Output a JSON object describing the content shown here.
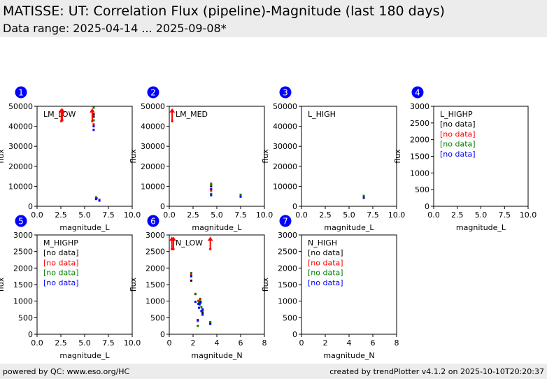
{
  "header": {
    "title": "MATISSE: UT: Correlation Flux (pipeline)-Magnitude (last 180 days)",
    "subtitle": "Data range: 2025-04-14 ... 2025-09-08*"
  },
  "footer": {
    "left": "powered by QC: www.eso.org/HC",
    "right": "created by trendPlotter v4.1.2 on 2025-10-10T20:20:37"
  },
  "colors": {
    "badge": "#0000ff",
    "series": [
      "#000000",
      "#ff0000",
      "#008000",
      "#0000ff"
    ],
    "nodata": [
      "#000000",
      "#ff0000",
      "#008000",
      "#0000ff"
    ]
  },
  "chart_data": [
    {
      "type": "scatter",
      "index": "1",
      "label": "LM_LOW",
      "xlabel": "magnitude_L",
      "ylabel": "flux",
      "xlim": [
        0,
        10
      ],
      "ylim": [
        0,
        50000
      ],
      "xticks": [
        "0.0",
        "2.5",
        "5.0",
        "7.5",
        "10.0"
      ],
      "yticks": [
        "0",
        "10000",
        "20000",
        "30000",
        "40000",
        "50000"
      ],
      "xtick_values": [
        0,
        2.5,
        5,
        7.5,
        10
      ],
      "ytick_values": [
        0,
        10000,
        20000,
        30000,
        40000,
        50000
      ],
      "arrows": [
        {
          "x": 2.55,
          "y_from": 42500,
          "y_to": 49000,
          "color": "#ff0000"
        },
        {
          "x": 2.65,
          "y_from": 43000,
          "y_to": 49000,
          "color": "#ff0000"
        },
        {
          "x": 5.8,
          "y_from": 42500,
          "y_to": 49000,
          "color": "#ff0000"
        }
      ],
      "series": [
        {
          "name": "black",
          "color": "#000000",
          "points": [
            [
              5.95,
              46000
            ],
            [
              5.95,
              44800
            ],
            [
              6.25,
              4000
            ]
          ]
        },
        {
          "name": "red",
          "color": "#ff0000",
          "points": [
            [
              5.95,
              41000
            ],
            [
              6.55,
              3300
            ],
            [
              2.6,
              46500
            ]
          ]
        },
        {
          "name": "green",
          "color": "#008000",
          "points": [
            [
              5.95,
              49300
            ],
            [
              5.95,
              43000
            ],
            [
              6.2,
              4500
            ]
          ]
        },
        {
          "name": "blue",
          "color": "#0000ff",
          "points": [
            [
              5.95,
              40000
            ],
            [
              5.95,
              38200
            ],
            [
              6.2,
              3600
            ],
            [
              6.55,
              2800
            ]
          ]
        }
      ]
    },
    {
      "type": "scatter",
      "index": "2",
      "label": "LM_MED",
      "xlabel": "magnitude_L",
      "ylabel": "flux",
      "xlim": [
        0,
        10
      ],
      "ylim": [
        0,
        50000
      ],
      "xticks": [
        "0.0",
        "2.5",
        "5.0",
        "7.5",
        "10.0"
      ],
      "yticks": [
        "0",
        "10000",
        "20000",
        "30000",
        "40000",
        "50000"
      ],
      "xtick_values": [
        0,
        2.5,
        5,
        7.5,
        10
      ],
      "ytick_values": [
        0,
        10000,
        20000,
        30000,
        40000,
        50000
      ],
      "arrows": [
        {
          "x": 0.3,
          "y_from": 42500,
          "y_to": 49000,
          "color": "#ff0000"
        }
      ],
      "series": [
        {
          "name": "black",
          "color": "#000000",
          "points": [
            [
              4.4,
              10000
            ]
          ]
        },
        {
          "name": "red",
          "color": "#ff0000",
          "points": [
            [
              4.4,
              10600
            ],
            [
              4.4,
              7800
            ]
          ]
        },
        {
          "name": "green",
          "color": "#008000",
          "points": [
            [
              4.4,
              11300
            ],
            [
              4.4,
              6200
            ],
            [
              7.5,
              5800
            ]
          ]
        },
        {
          "name": "blue",
          "color": "#0000ff",
          "points": [
            [
              4.4,
              8600
            ],
            [
              4.4,
              5500
            ],
            [
              7.5,
              4800
            ]
          ]
        }
      ]
    },
    {
      "type": "scatter",
      "index": "3",
      "label": "L_HIGH",
      "xlabel": "magnitude_L",
      "ylabel": "flux",
      "xlim": [
        0,
        10
      ],
      "ylim": [
        0,
        50000
      ],
      "xticks": [
        "0.0",
        "2.5",
        "5.0",
        "7.5",
        "10.0"
      ],
      "yticks": [
        "0",
        "10000",
        "20000",
        "30000",
        "40000",
        "50000"
      ],
      "xtick_values": [
        0,
        2.5,
        5,
        7.5,
        10
      ],
      "ytick_values": [
        0,
        10000,
        20000,
        30000,
        40000,
        50000
      ],
      "arrows": [],
      "series": [
        {
          "name": "green",
          "color": "#008000",
          "points": [
            [
              6.55,
              5200
            ]
          ]
        },
        {
          "name": "blue",
          "color": "#0000ff",
          "points": [
            [
              6.55,
              4200
            ]
          ]
        }
      ]
    },
    {
      "type": "scatter",
      "index": "4",
      "label": "L_HIGHP",
      "xlabel": "magnitude_L",
      "ylabel": "flux",
      "xlim": [
        0,
        10
      ],
      "ylim": [
        0,
        3000
      ],
      "xticks": [
        "0.0",
        "2.5",
        "5.0",
        "7.5",
        "10.0"
      ],
      "yticks": [
        "0",
        "500",
        "1000",
        "1500",
        "2000",
        "2500",
        "3000"
      ],
      "xtick_values": [
        0,
        2.5,
        5,
        7.5,
        10
      ],
      "ytick_values": [
        0,
        500,
        1000,
        1500,
        2000,
        2500,
        3000
      ],
      "nodata": [
        "[no data]",
        "[no data]",
        "[no data]",
        "[no data]"
      ],
      "arrows": [],
      "series": []
    },
    {
      "type": "scatter",
      "index": "5",
      "label": "M_HIGHP",
      "xlabel": "magnitude_L",
      "ylabel": "flux",
      "xlim": [
        0,
        10
      ],
      "ylim": [
        0,
        3000
      ],
      "xticks": [
        "0.0",
        "2.5",
        "5.0",
        "7.5",
        "10.0"
      ],
      "yticks": [
        "0",
        "500",
        "1000",
        "1500",
        "2000",
        "2500",
        "3000"
      ],
      "xtick_values": [
        0,
        2.5,
        5,
        7.5,
        10
      ],
      "ytick_values": [
        0,
        500,
        1000,
        1500,
        2000,
        2500,
        3000
      ],
      "nodata": [
        "[no data]",
        "[no data]",
        "[no data]",
        "[no data]"
      ],
      "arrows": [],
      "series": []
    },
    {
      "type": "scatter",
      "index": "6",
      "label": "N_LOW",
      "xlabel": "magnitude_N",
      "ylabel": "flux",
      "xlim": [
        0,
        8
      ],
      "ylim": [
        0,
        3000
      ],
      "xticks": [
        "0",
        "2",
        "4",
        "6",
        "8"
      ],
      "yticks": [
        "0",
        "500",
        "1000",
        "1500",
        "2000",
        "2500",
        "3000"
      ],
      "xtick_values": [
        0,
        2,
        4,
        6,
        8
      ],
      "ytick_values": [
        0,
        500,
        1000,
        1500,
        2000,
        2500,
        3000
      ],
      "arrows": [
        {
          "x": 0.22,
          "y_from": 2570,
          "y_to": 2950,
          "color": "#ff0000"
        },
        {
          "x": 0.35,
          "y_from": 2570,
          "y_to": 2950,
          "color": "#ff0000"
        },
        {
          "x": 3.45,
          "y_from": 2570,
          "y_to": 2950,
          "color": "#ff0000"
        }
      ],
      "series": [
        {
          "name": "black",
          "color": "#000000",
          "points": [
            [
              1.85,
              1620
            ],
            [
              2.8,
              650
            ],
            [
              2.6,
              980
            ]
          ]
        },
        {
          "name": "red",
          "color": "#ff0000",
          "points": [
            [
              1.85,
              1790
            ],
            [
              2.2,
              1210
            ],
            [
              2.6,
              1070
            ],
            [
              2.45,
              1010
            ],
            [
              2.4,
              400
            ],
            [
              3.45,
              350
            ]
          ]
        },
        {
          "name": "green",
          "color": "#008000",
          "points": [
            [
              1.85,
              1850
            ],
            [
              2.2,
              1220
            ],
            [
              2.6,
              1050
            ],
            [
              2.5,
              950
            ],
            [
              2.7,
              820
            ],
            [
              2.8,
              700
            ],
            [
              2.4,
              250
            ],
            [
              3.45,
              370
            ]
          ]
        },
        {
          "name": "blue",
          "color": "#0000ff",
          "points": [
            [
              1.85,
              1750
            ],
            [
              2.2,
              980
            ],
            [
              2.45,
              920
            ],
            [
              2.55,
              900
            ],
            [
              2.65,
              960
            ],
            [
              2.5,
              800
            ],
            [
              2.7,
              700
            ],
            [
              2.8,
              750
            ],
            [
              2.8,
              590
            ],
            [
              2.4,
              430
            ],
            [
              3.45,
              310
            ]
          ]
        }
      ]
    },
    {
      "type": "scatter",
      "index": "7",
      "label": "N_HIGH",
      "xlabel": "magnitude_N",
      "ylabel": "flux",
      "xlim": [
        0,
        8
      ],
      "ylim": [
        0,
        3000
      ],
      "xticks": [
        "0",
        "2",
        "4",
        "6",
        "8"
      ],
      "yticks": [
        "0",
        "500",
        "1000",
        "1500",
        "2000",
        "2500",
        "3000"
      ],
      "xtick_values": [
        0,
        2,
        4,
        6,
        8
      ],
      "ytick_values": [
        0,
        500,
        1000,
        1500,
        2000,
        2500,
        3000
      ],
      "nodata": [
        "[no data]",
        "[no data]",
        "[no data]",
        "[no data]"
      ],
      "arrows": [],
      "series": []
    }
  ]
}
